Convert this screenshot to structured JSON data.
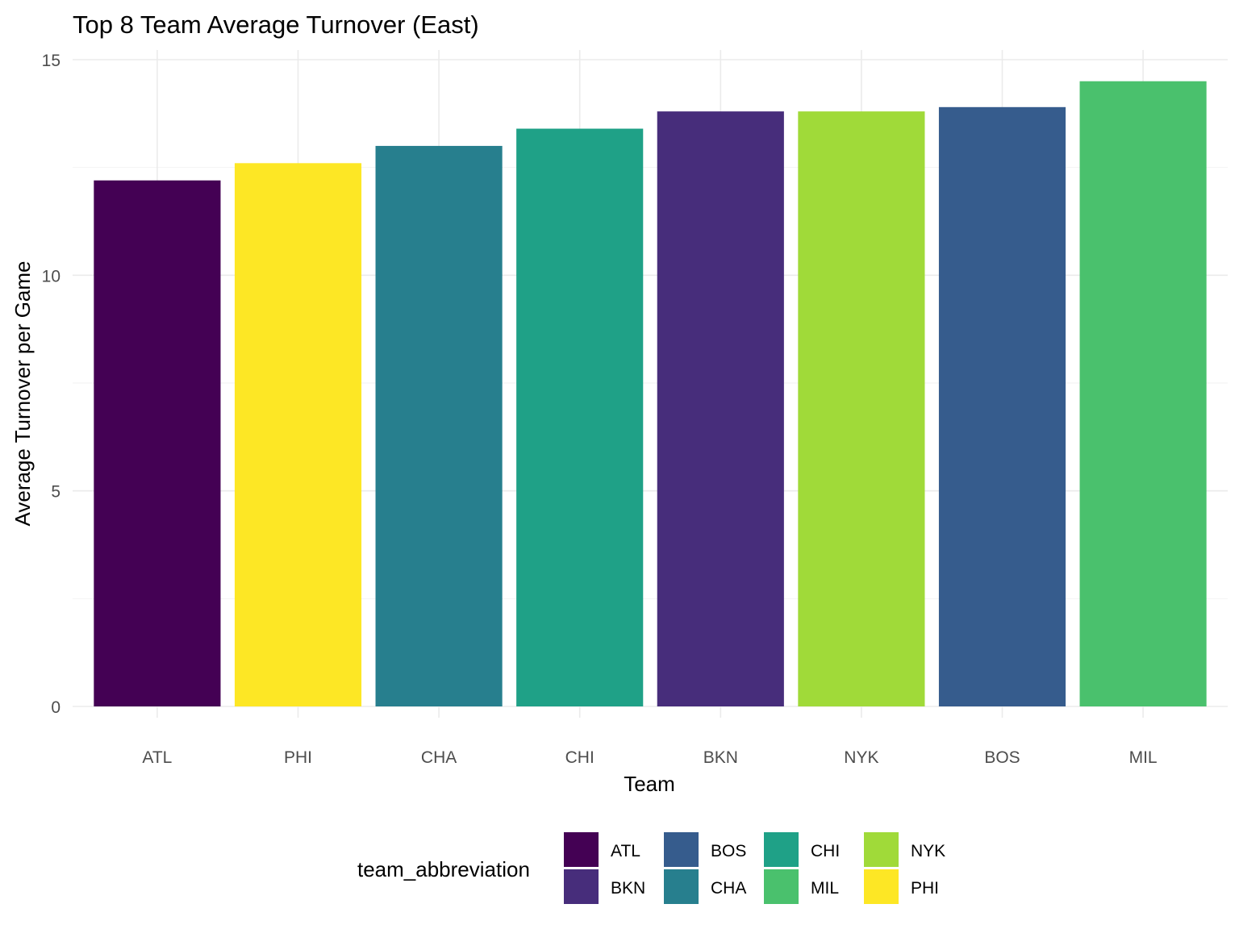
{
  "chart_data": {
    "type": "bar",
    "title": "Top 8 Team Average Turnover (East)",
    "xlabel": "Team",
    "ylabel": "Average Turnover per Game",
    "categories": [
      "ATL",
      "PHI",
      "CHA",
      "CHI",
      "BKN",
      "NYK",
      "BOS",
      "MIL"
    ],
    "values": [
      12.2,
      12.6,
      13.0,
      13.4,
      13.8,
      13.8,
      13.9,
      14.5
    ],
    "colors": [
      "#440154",
      "#FDE725",
      "#277F8E",
      "#1FA187",
      "#472D7B",
      "#A0DA39",
      "#365C8D",
      "#4AC16D"
    ],
    "ylim": [
      0,
      15
    ],
    "yticks": [
      0,
      5,
      10,
      15
    ],
    "grid": true,
    "legend": {
      "title": "team_abbreviation",
      "position": "bottom",
      "entries": [
        {
          "label": "ATL",
          "color": "#440154"
        },
        {
          "label": "BKN",
          "color": "#472D7B"
        },
        {
          "label": "BOS",
          "color": "#365C8D"
        },
        {
          "label": "CHA",
          "color": "#277F8E"
        },
        {
          "label": "CHI",
          "color": "#1FA187"
        },
        {
          "label": "MIL",
          "color": "#4AC16D"
        },
        {
          "label": "NYK",
          "color": "#A0DA39"
        },
        {
          "label": "PHI",
          "color": "#FDE725"
        }
      ]
    }
  }
}
